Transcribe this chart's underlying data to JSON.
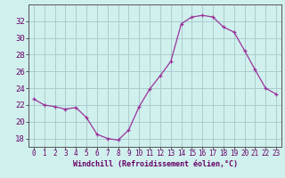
{
  "hours": [
    0,
    1,
    2,
    3,
    4,
    5,
    6,
    7,
    8,
    9,
    10,
    11,
    12,
    13,
    14,
    15,
    16,
    17,
    18,
    19,
    20,
    21,
    22,
    23
  ],
  "values": [
    22.7,
    22.0,
    21.8,
    21.5,
    21.7,
    20.5,
    18.5,
    18.0,
    17.8,
    19.0,
    21.8,
    23.9,
    25.5,
    27.2,
    31.7,
    32.5,
    32.7,
    32.5,
    31.3,
    30.7,
    28.5,
    26.2,
    24.0,
    23.3
  ],
  "xlabel": "Windchill (Refroidissement éolien,°C)",
  "ylim": [
    17,
    34
  ],
  "xlim": [
    -0.5,
    23.5
  ],
  "yticks": [
    18,
    20,
    22,
    24,
    26,
    28,
    30,
    32
  ],
  "xticks": [
    0,
    1,
    2,
    3,
    4,
    5,
    6,
    7,
    8,
    9,
    10,
    11,
    12,
    13,
    14,
    15,
    16,
    17,
    18,
    19,
    20,
    21,
    22,
    23
  ],
  "line_color": "#993399",
  "marker": "+",
  "bg_color": "#d0f0ee",
  "grid_color": "#aacccc",
  "axis_color": "#555555",
  "label_color": "#660066",
  "tick_color": "#660066",
  "xlabel_fontsize": 6.0,
  "ytick_fontsize": 6.5,
  "xtick_fontsize": 5.5
}
